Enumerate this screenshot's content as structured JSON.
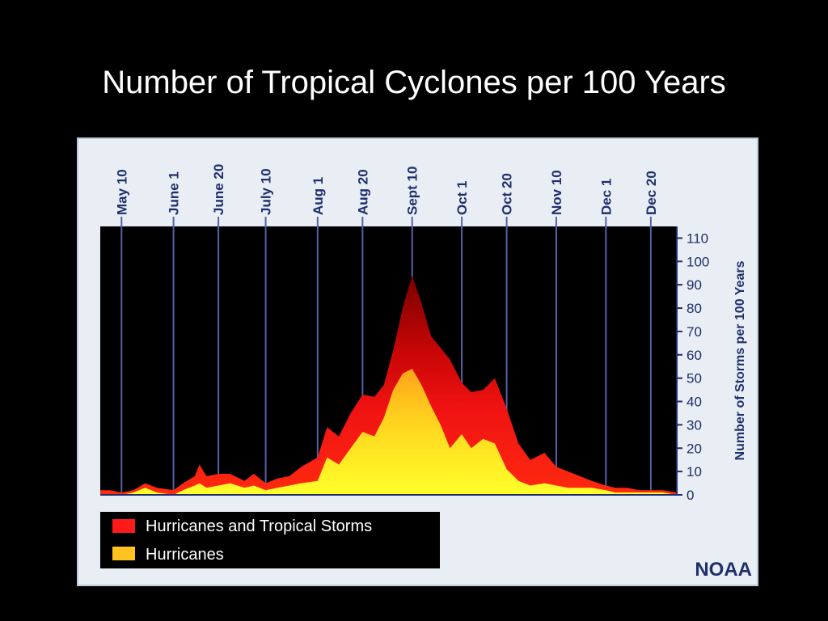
{
  "slide": {
    "title": "Number of Tropical Cyclones per 100 Years"
  },
  "colors": {
    "background": "#000000",
    "panel": "#e8eef4",
    "plot_bg": "#000000",
    "total_fill": "#e01010",
    "total_fill_dark": "#8a0000",
    "hurricane_fill": "#ffd700",
    "hurricane_fill_bright": "#ffff20",
    "axis_text": "#1e2f6b"
  },
  "chart_data": {
    "type": "area",
    "title": "",
    "xlabel": "",
    "ylabel": "Number of Storms per 100 Years",
    "ylim": [
      0,
      115
    ],
    "yticks": [
      0,
      10,
      20,
      30,
      40,
      50,
      60,
      70,
      80,
      90,
      100,
      110
    ],
    "x_range": [
      "May 1",
      "Dec 31"
    ],
    "date_ticks": [
      "May 10",
      "June 1",
      "June 20",
      "July 10",
      "Aug 1",
      "Aug 20",
      "Sept 10",
      "Oct 1",
      "Oct 20",
      "Nov 10",
      "Dec 1",
      "Dec 20"
    ],
    "x": [
      "May 1",
      "May 5",
      "May 10",
      "May 15",
      "May 20",
      "May 25",
      "June 1",
      "June 5",
      "June 10",
      "June 12",
      "June 15",
      "June 20",
      "June 25",
      "July 1",
      "July 5",
      "July 10",
      "July 15",
      "July 20",
      "July 25",
      "Aug 1",
      "Aug 5",
      "Aug 10",
      "Aug 15",
      "Aug 20",
      "Aug 25",
      "Aug 29",
      "Sept 2",
      "Sept 6",
      "Sept 10",
      "Sept 14",
      "Sept 18",
      "Sept 22",
      "Sept 26",
      "Oct 1",
      "Oct 5",
      "Oct 10",
      "Oct 15",
      "Oct 20",
      "Oct 25",
      "Oct 30",
      "Nov 5",
      "Nov 10",
      "Nov 15",
      "Nov 20",
      "Nov 25",
      "Dec 1",
      "Dec 5",
      "Dec 10",
      "Dec 15",
      "Dec 20",
      "Dec 25",
      "Dec 31"
    ],
    "series": [
      {
        "name": "Hurricanes and Tropical Storms",
        "values": [
          2,
          2,
          1,
          2,
          5,
          3,
          2,
          5,
          8,
          13,
          8,
          9,
          9,
          6,
          9,
          5,
          7,
          8,
          12,
          16,
          29,
          25,
          35,
          43,
          42,
          47,
          62,
          80,
          94,
          82,
          68,
          63,
          58,
          48,
          44,
          45,
          50,
          37,
          22,
          15,
          18,
          12,
          10,
          8,
          6,
          4,
          3,
          3,
          2,
          2,
          2,
          1
        ]
      },
      {
        "name": "Hurricanes",
        "values": [
          0,
          0,
          0,
          1,
          3,
          1,
          0,
          2,
          4,
          5,
          3,
          4,
          5,
          3,
          4,
          2,
          3,
          4,
          5,
          6,
          16,
          13,
          20,
          27,
          25,
          33,
          45,
          52,
          54,
          47,
          38,
          30,
          20,
          26,
          20,
          24,
          22,
          11,
          6,
          4,
          5,
          4,
          3,
          3,
          3,
          2,
          1,
          1,
          1,
          1,
          1,
          0
        ]
      }
    ],
    "legend": {
      "position": "bottom-left",
      "entries": [
        "Hurricanes and Tropical Storms",
        "Hurricanes"
      ]
    },
    "source": "NOAA"
  }
}
